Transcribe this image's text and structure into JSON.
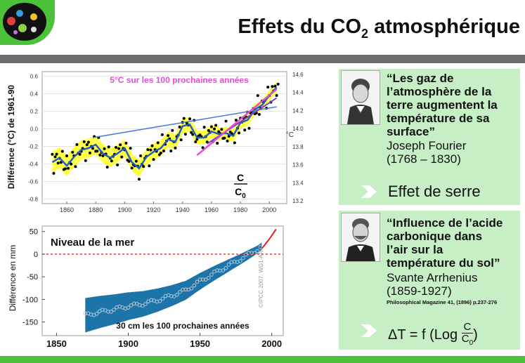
{
  "title": "Effets du CO",
  "title_sub": "2",
  "title_rest": " atmosphérique",
  "chart_data": [
    {
      "type": "scatter",
      "annotation": "5°C sur les 100 prochaines années",
      "ylabel": "Différence (°C) de 1961-90",
      "y2label": "°C",
      "x_ticks": [
        "1860",
        "1880",
        "1900",
        "1920",
        "1940",
        "1960",
        "1980",
        "2000"
      ],
      "y_ticks": [
        "0.6",
        "0.4",
        "0.2",
        "0.0",
        "-0.2",
        "-0.4",
        "-0.6",
        "-0.8"
      ],
      "y2_ticks": [
        "14.6",
        "14.4",
        "14.2",
        "14.0",
        "13.8",
        "13.6",
        "13.4",
        "13.2"
      ],
      "ratio_num": "C",
      "ratio_den": "C",
      "ratio_den_sub": "0",
      "xlim": [
        1843,
        2012
      ],
      "ylim": [
        -0.85,
        0.65
      ],
      "smooth": {
        "x": [
          1850,
          1855,
          1860,
          1865,
          1870,
          1875,
          1880,
          1885,
          1890,
          1895,
          1900,
          1905,
          1910,
          1915,
          1920,
          1925,
          1930,
          1935,
          1940,
          1945,
          1950,
          1955,
          1960,
          1965,
          1970,
          1975,
          1980,
          1985,
          1990,
          1995,
          2000,
          2005
        ],
        "y": [
          -0.38,
          -0.33,
          -0.42,
          -0.32,
          -0.24,
          -0.22,
          -0.18,
          -0.28,
          -0.33,
          -0.28,
          -0.22,
          -0.38,
          -0.45,
          -0.32,
          -0.26,
          -0.22,
          -0.12,
          -0.15,
          0.03,
          0.05,
          -0.1,
          -0.1,
          -0.03,
          -0.06,
          -0.05,
          -0.08,
          0.07,
          0.1,
          0.22,
          0.27,
          0.38,
          0.47
        ]
      },
      "trend_pink": [
        [
          1950,
          -0.3
        ],
        [
          2005,
          0.45
        ]
      ],
      "trend_purple": [
        [
          1957,
          -0.17
        ],
        [
          2005,
          0.35
        ]
      ],
      "trend_blue": [
        [
          1878,
          -0.1
        ],
        [
          2005,
          0.25
        ]
      ]
    },
    {
      "type": "scatter",
      "annotation_top": "Niveau de la mer",
      "annotation_bottom": "30 cm les 100 prochaines années",
      "watermark": "©IPCC 2007: WG1-AR4",
      "ylabel": "Différence en mm",
      "x_ticks": [
        "1850",
        "1900",
        "1950",
        "2000"
      ],
      "y_ticks": [
        "50",
        "0",
        "-50",
        "-100",
        "-150"
      ],
      "xlim": [
        1840,
        2008
      ],
      "ylim": [
        -180,
        62
      ],
      "series": {
        "x": [
          1870,
          1880,
          1890,
          1900,
          1910,
          1920,
          1930,
          1940,
          1950,
          1960,
          1970,
          1980,
          1990,
          2000,
          2003
        ],
        "y": [
          -135,
          -128,
          -122,
          -115,
          -110,
          -102,
          -92,
          -80,
          -60,
          -42,
          -25,
          -8,
          10,
          35,
          55
        ]
      }
    }
  ],
  "cards": [
    {
      "quote_lines": [
        "“Les gaz de",
        "l’atmosphère de la",
        "terre augmentent la",
        "température de sa",
        "surface”"
      ],
      "author_lines": [
        "Joseph Fourier",
        "(1768 – 1830)"
      ],
      "result": "Effet de serre",
      "portrait_icon": "portrait-fourier"
    },
    {
      "quote_lines": [
        "“Influence de l’acide",
        "carbonique dans",
        "l’air sur la",
        "température du sol”"
      ],
      "author_lines": [
        "Svante Arrhenius",
        "(1859-1927)"
      ],
      "reference": "Philosophical Magazine 41, (1896) p.237-276",
      "result_prefix": "ΔT = f (Log ",
      "result_num": "C",
      "result_den": "C",
      "result_den_sub": "0",
      "result_suffix": ")",
      "portrait_icon": "portrait-arrhenius"
    }
  ],
  "colors": {
    "green_bar": "#4cc23a",
    "gray_bar": "#6c6c6c",
    "panel_green": "#c6efc6",
    "yellow_band": "#ffff33",
    "blue_line": "#1f5fc2",
    "sea_band": "#1c74a8",
    "pink": "#e34dd4"
  }
}
